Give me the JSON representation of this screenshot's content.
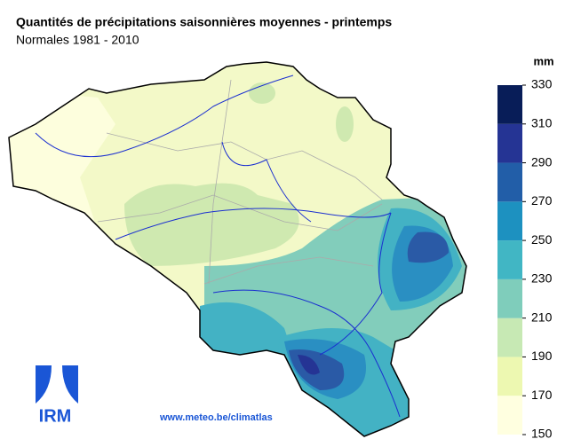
{
  "header": {
    "title": "Quantités de précipitations saisonnières moyennes - printemps",
    "subtitle": "Normales 1981 - 2010"
  },
  "legend": {
    "unit": "mm",
    "ticks": [
      150,
      170,
      190,
      210,
      230,
      250,
      270,
      290,
      310,
      330
    ],
    "colors": [
      "#ffffe0",
      "#edf8b1",
      "#c7e9b4",
      "#7fcdbb",
      "#41b6c4",
      "#1d91c0",
      "#225ea8",
      "#253494",
      "#081d58"
    ]
  },
  "footer": {
    "logo": "IRM",
    "url": "www.meteo.be/climatlas"
  }
}
